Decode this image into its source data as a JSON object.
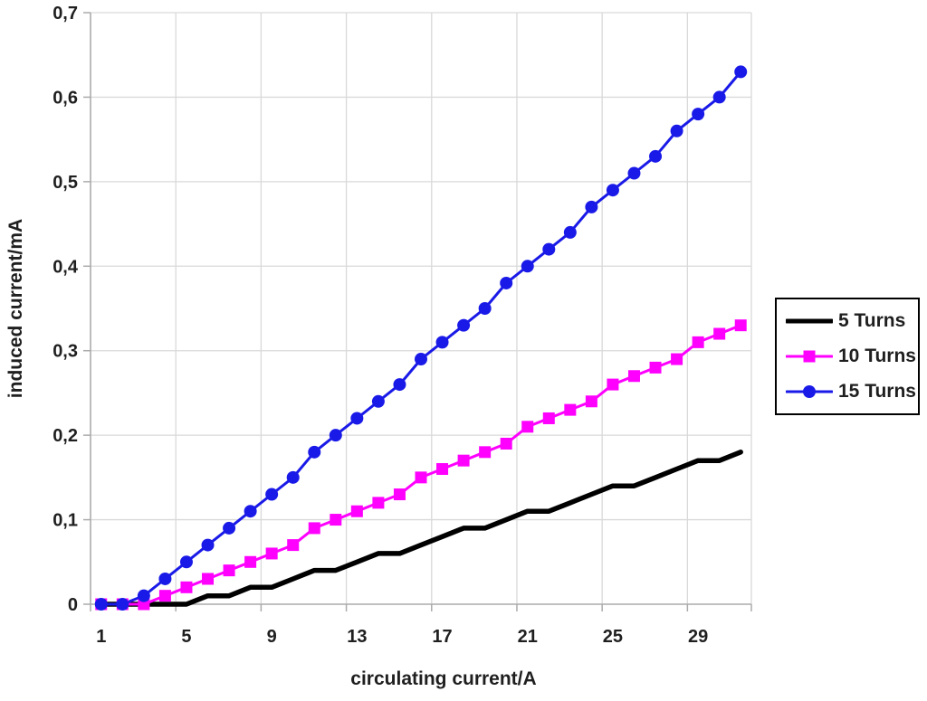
{
  "chart_data": {
    "type": "line",
    "title": "",
    "xlabel": "circulating current/A",
    "ylabel": "induced current/mA",
    "x": [
      1,
      2,
      3,
      4,
      5,
      6,
      7,
      8,
      9,
      10,
      11,
      12,
      13,
      14,
      15,
      16,
      17,
      18,
      19,
      20,
      21,
      22,
      23,
      24,
      25,
      26,
      27,
      28,
      29,
      30,
      31
    ],
    "x_tick_positions": [
      1,
      5,
      9,
      13,
      17,
      21,
      25,
      29
    ],
    "x_tick_labels": [
      "1",
      "5",
      "9",
      "13",
      "17",
      "21",
      "25",
      "29"
    ],
    "y_ticks": [
      0,
      0.1,
      0.2,
      0.3,
      0.4,
      0.5,
      0.6,
      0.7
    ],
    "y_tick_labels": [
      "0",
      "0,1",
      "0,2",
      "0,3",
      "0,4",
      "0,5",
      "0,6",
      "0,7"
    ],
    "ylim": [
      0,
      0.7
    ],
    "grid": true,
    "decimal_separator": ",",
    "legend_position": "right",
    "series": [
      {
        "name": "5 Turns",
        "color": "#000000",
        "marker": "none",
        "line_width": 5.5,
        "values": [
          0,
          0,
          0,
          0,
          0,
          0.01,
          0.01,
          0.02,
          0.02,
          0.03,
          0.04,
          0.04,
          0.05,
          0.06,
          0.06,
          0.07,
          0.08,
          0.09,
          0.09,
          0.1,
          0.11,
          0.11,
          0.12,
          0.13,
          0.14,
          0.14,
          0.15,
          0.16,
          0.17,
          0.17,
          0.18
        ]
      },
      {
        "name": "10 Turns",
        "color": "#FF00FF",
        "marker": "square",
        "line_width": 3,
        "values": [
          0,
          0,
          0,
          0.01,
          0.02,
          0.03,
          0.04,
          0.05,
          0.06,
          0.07,
          0.09,
          0.1,
          0.11,
          0.12,
          0.13,
          0.15,
          0.16,
          0.17,
          0.18,
          0.19,
          0.21,
          0.22,
          0.23,
          0.24,
          0.26,
          0.27,
          0.28,
          0.29,
          0.31,
          0.32,
          0.33
        ]
      },
      {
        "name": "15 Turns",
        "color": "#1A1AE8",
        "marker": "circle",
        "line_width": 3,
        "values": [
          0,
          0,
          0.01,
          0.03,
          0.05,
          0.07,
          0.09,
          0.11,
          0.13,
          0.15,
          0.18,
          0.2,
          0.22,
          0.24,
          0.26,
          0.29,
          0.31,
          0.33,
          0.35,
          0.38,
          0.4,
          0.42,
          0.44,
          0.47,
          0.49,
          0.51,
          0.53,
          0.56,
          0.58,
          0.6,
          0.63
        ]
      }
    ]
  },
  "colors": {
    "background": "#FFFFFF",
    "gridline": "#D9D9D9",
    "axis": "#ABABAB",
    "text": "#1F1F1F",
    "legend_border": "#000000"
  }
}
